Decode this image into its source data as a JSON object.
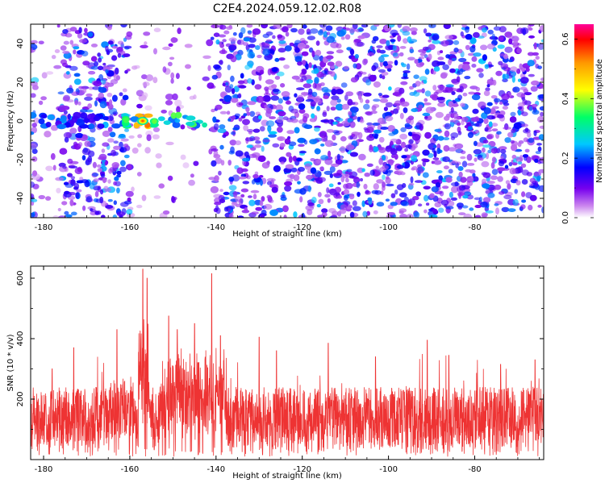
{
  "title": "C2E4.2024.059.12.02.R08",
  "chart_data": [
    {
      "type": "heatmap",
      "xlabel": "Height of straight line (km)",
      "ylabel": "Frequency (Hz)",
      "xlim": [
        -183,
        -64
      ],
      "ylim": [
        -50,
        50
      ],
      "xticks": [
        -180,
        -160,
        -140,
        -120,
        -100,
        -80
      ],
      "yticks": [
        -40,
        -20,
        0,
        20,
        40
      ],
      "colorbar": {
        "label": "Normalized spectral amplitude",
        "range": [
          0,
          0.65
        ],
        "ticks": [
          0.0,
          0.2,
          0.4,
          0.6
        ],
        "colors": [
          "#ffffff",
          "#cc88ee",
          "#7700ee",
          "#0000ff",
          "#00c8ff",
          "#00ff66",
          "#ffff00",
          "#ff9900",
          "#ff0000",
          "#ff0099"
        ]
      },
      "features": [
        {
          "x_range": [
            -183,
            -141
          ],
          "y": 0,
          "amplitude_max": 0.55,
          "note": "line of strong features near 0 Hz, hottest near -157 km"
        }
      ],
      "low_density_x_ranges": [
        [
          -182,
          -176
        ],
        [
          -160,
          -141
        ]
      ],
      "background_amplitude": [
        0.05,
        0.25
      ]
    },
    {
      "type": "line",
      "xlabel": "Height of straight line (km)",
      "ylabel": "SNR (10 * v/v)",
      "xlim": [
        -183,
        -64
      ],
      "ylim": [
        0,
        640
      ],
      "xticks": [
        -180,
        -160,
        -140,
        -120,
        -100,
        -80
      ],
      "yticks": [
        200,
        400,
        600
      ],
      "color": "#ee3333",
      "baseline_snr": [
        40,
        240
      ],
      "peaks": [
        {
          "x": -157,
          "y": 630
        },
        {
          "x": -156,
          "y": 600
        },
        {
          "x": -141,
          "y": 615
        },
        {
          "x": -151,
          "y": 475
        },
        {
          "x": -149,
          "y": 430
        },
        {
          "x": -145,
          "y": 450
        },
        {
          "x": -139,
          "y": 410
        },
        {
          "x": -163,
          "y": 430
        },
        {
          "x": -173,
          "y": 370
        },
        {
          "x": -178,
          "y": 300
        },
        {
          "x": -130,
          "y": 405
        },
        {
          "x": -126,
          "y": 360
        },
        {
          "x": -114,
          "y": 385
        },
        {
          "x": -91,
          "y": 395
        },
        {
          "x": -103,
          "y": 340
        },
        {
          "x": -86,
          "y": 345
        },
        {
          "x": -74,
          "y": 315
        },
        {
          "x": -66,
          "y": 330
        }
      ]
    }
  ]
}
